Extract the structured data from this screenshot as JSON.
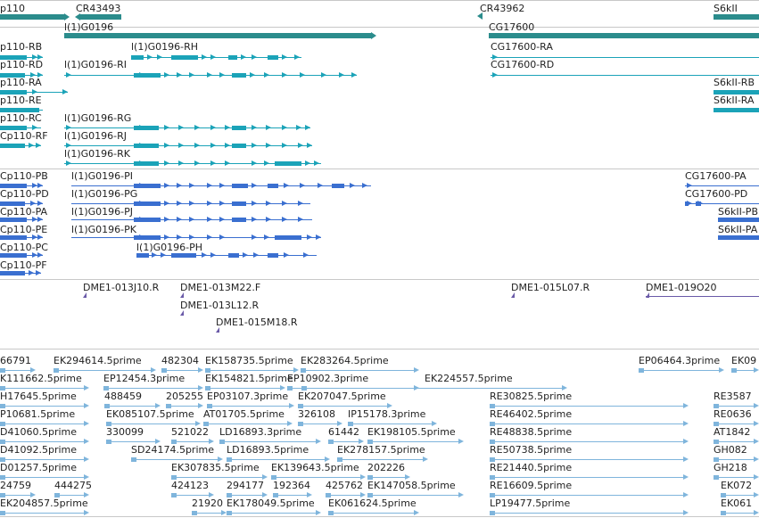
{
  "colors": {
    "gene": "#2b8c8c",
    "transcript": "#1ba3b8",
    "cds": "#3a6fd0",
    "clone": "#6a5aa8",
    "est": "#7fb5dc",
    "separator": "#c8c8c8",
    "text": "#222222"
  },
  "tracks": {
    "genes": {
      "features": [
        {
          "label": "p110"
        },
        {
          "label": "CR43493"
        },
        {
          "label": "l(1)G0196"
        },
        {
          "label": "CR43962"
        },
        {
          "label": "CG17600"
        },
        {
          "label": "S6kII"
        }
      ]
    },
    "transcripts": {
      "features": [
        {
          "label": "p110-RB"
        },
        {
          "label": "l(1)G0196-RH"
        },
        {
          "label": "CG17600-RA"
        },
        {
          "label": "p110-RD"
        },
        {
          "label": "l(1)G0196-RI"
        },
        {
          "label": "CG17600-RD"
        },
        {
          "label": "p110-RA"
        },
        {
          "label": "S6kII-RB"
        },
        {
          "label": "p110-RE"
        },
        {
          "label": "S6kII-RA"
        },
        {
          "label": "p110-RC"
        },
        {
          "label": "l(1)G0196-RG"
        },
        {
          "label": "Cp110-RF"
        },
        {
          "label": "l(1)G0196-RJ"
        },
        {
          "label": "l(1)G0196-RK"
        }
      ]
    },
    "cds": {
      "features": [
        {
          "label": "Cp110-PB"
        },
        {
          "label": "l(1)G0196-PI"
        },
        {
          "label": "CG17600-PA"
        },
        {
          "label": "Cp110-PD"
        },
        {
          "label": "l(1)G0196-PG"
        },
        {
          "label": "CG17600-PD"
        },
        {
          "label": "Cp110-PA"
        },
        {
          "label": "l(1)G0196-PJ"
        },
        {
          "label": "S6kII-PB"
        },
        {
          "label": "Cp110-PE"
        },
        {
          "label": "l(1)G0196-PK"
        },
        {
          "label": "S6kII-PA"
        },
        {
          "label": "Cp110-PC"
        },
        {
          "label": "l(1)G0196-PH"
        },
        {
          "label": "Cp110-PF"
        }
      ]
    },
    "clones": {
      "features": [
        {
          "label": "DME1-013J10.R"
        },
        {
          "label": "DME1-013M22.F"
        },
        {
          "label": "DME1-013L12.R"
        },
        {
          "label": "DME1-015M18.R"
        },
        {
          "label": "DME1-015L07.R"
        },
        {
          "label": "DME1-019O20"
        }
      ]
    },
    "ests": {
      "labels": [
        "66791",
        "EK294614.5prime",
        "482304",
        "EK158735.5prime",
        "EK283264.5prime",
        "EP06464.3prime",
        "EK09",
        "K111662.5prime",
        "EP12454.3prime",
        "EK154821.5prime",
        "EP10902.3prime",
        "EK224557.5prime",
        "H17645.5prime",
        "488459",
        "205255",
        "EP03107.3prime",
        "EK207047.5prime",
        "RE30825.5prime",
        "RE3587",
        "P10681.5prime",
        "EK085107.5prime",
        "AT01705.5prime",
        "326108",
        "IP15178.3prime",
        "RE46402.5prime",
        "RE0636",
        "D41060.5prime",
        "330099",
        "521022",
        "LD16893.3prime",
        "61442",
        "EK198105.5prime",
        "RE48838.5prime",
        "AT1842",
        "D41092.5prime",
        "SD24174.5prime",
        "LD16893.5prime",
        "EK278157.5prime",
        "RE50738.5prime",
        "GH082",
        "D01257.5prime",
        "EK307835.5prime",
        "EK139643.5prime",
        "202226",
        "RE21440.5prime",
        "GH218",
        "24759",
        "444275",
        "424123",
        "294177",
        "192364",
        "425762",
        "EK147058.5prime",
        "RE16609.5prime",
        "EK072",
        "EK204857.5prime",
        "21920",
        "EK178049.5prime",
        "EK061624.5prime",
        "LP19477.5prime",
        "EK061"
      ]
    }
  }
}
